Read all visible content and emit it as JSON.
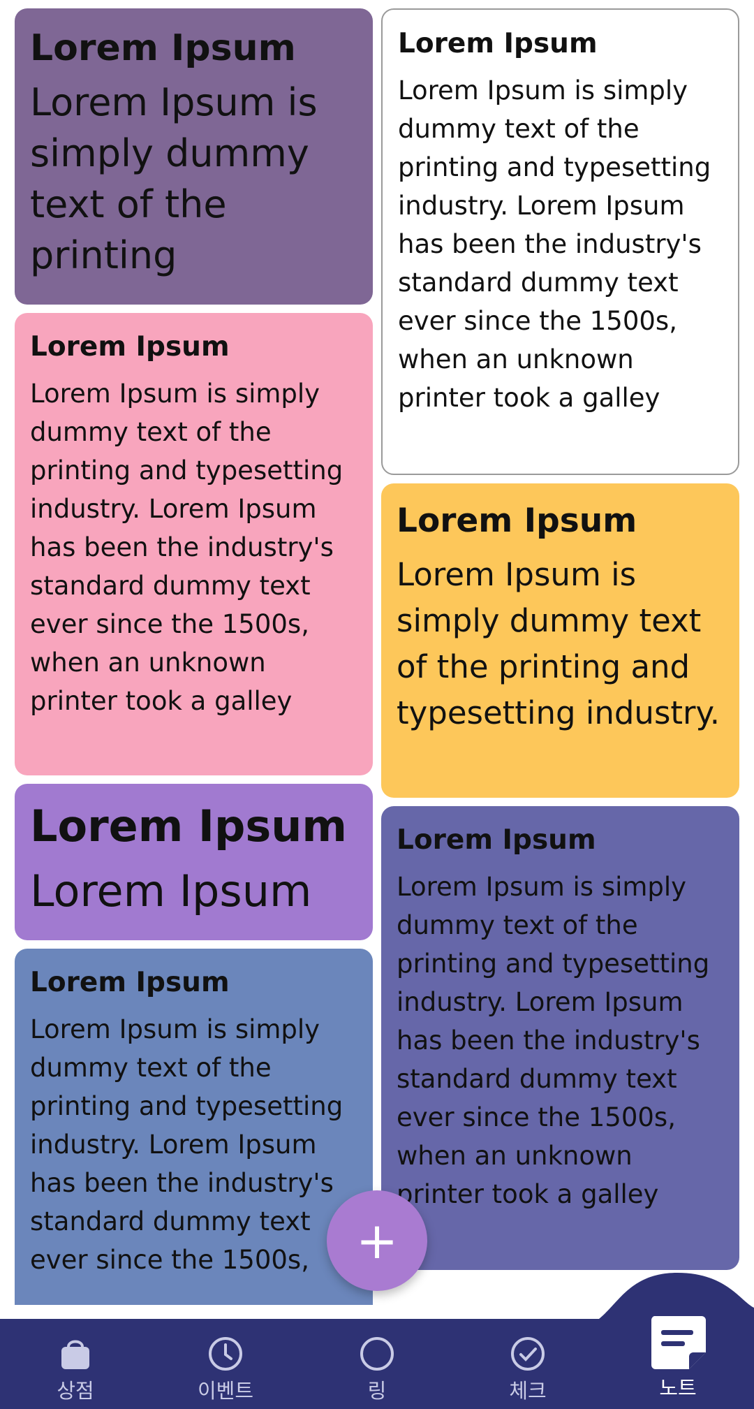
{
  "notes": [
    {
      "title": "Lorem Ipsum",
      "body": "Lorem Ipsum is simply dummy text of the printing",
      "color": "#7f6795",
      "col": "left"
    },
    {
      "title": "Lorem Ipsum",
      "body": "Lorem Ipsum is simply dummy text of the printing and typesetting industry. Lorem Ipsum has been the industry's standard dummy text ever since the 1500s, when an unknown printer took a galley",
      "color": "#f8a5bd",
      "col": "left"
    },
    {
      "title": "Lorem Ipsum",
      "body": "Lorem Ipsum",
      "color": "#a17ad0",
      "col": "left"
    },
    {
      "title": "Lorem Ipsum",
      "body": "Lorem Ipsum is simply dummy text of the printing and typesetting industry. Lorem Ipsum has been the industry's standard dummy text ever since the 1500s,",
      "color": "#6b86bb",
      "col": "left"
    },
    {
      "title": "Lorem Ipsum",
      "body": "Lorem Ipsum is simply dummy text of the printing and typesetting industry. Lorem Ipsum has been the industry's standard dummy text ever since the 1500s, when an unknown printer took a galley",
      "color": "#ffffff",
      "col": "right"
    },
    {
      "title": "Lorem Ipsum",
      "body": "Lorem Ipsum is simply dummy text of the printing and typesetting industry.",
      "color": "#fdc75a",
      "col": "right"
    },
    {
      "title": "Lorem Ipsum",
      "body": "Lorem Ipsum is simply dummy text of the printing and typesetting industry. Lorem Ipsum has been the industry's standard dummy text ever since the 1500s, when an unknown printer took a galley",
      "color": "#6667a9",
      "col": "right"
    }
  ],
  "fab": {
    "icon": "plus-icon",
    "label": "+"
  },
  "tabs": [
    {
      "label": "상점",
      "icon": "shopping-bag-icon"
    },
    {
      "label": "이벤트",
      "icon": "clock-icon"
    },
    {
      "label": "링",
      "icon": "ring-icon"
    },
    {
      "label": "체크",
      "icon": "check-circle-icon"
    },
    {
      "label": "노트",
      "icon": "note-icon",
      "active": true
    }
  ],
  "colors": {
    "tabbar": "#2e3274",
    "tab_inactive": "#c9cbe6",
    "tab_active": "#ffffff",
    "fab": "#a97bd1"
  }
}
